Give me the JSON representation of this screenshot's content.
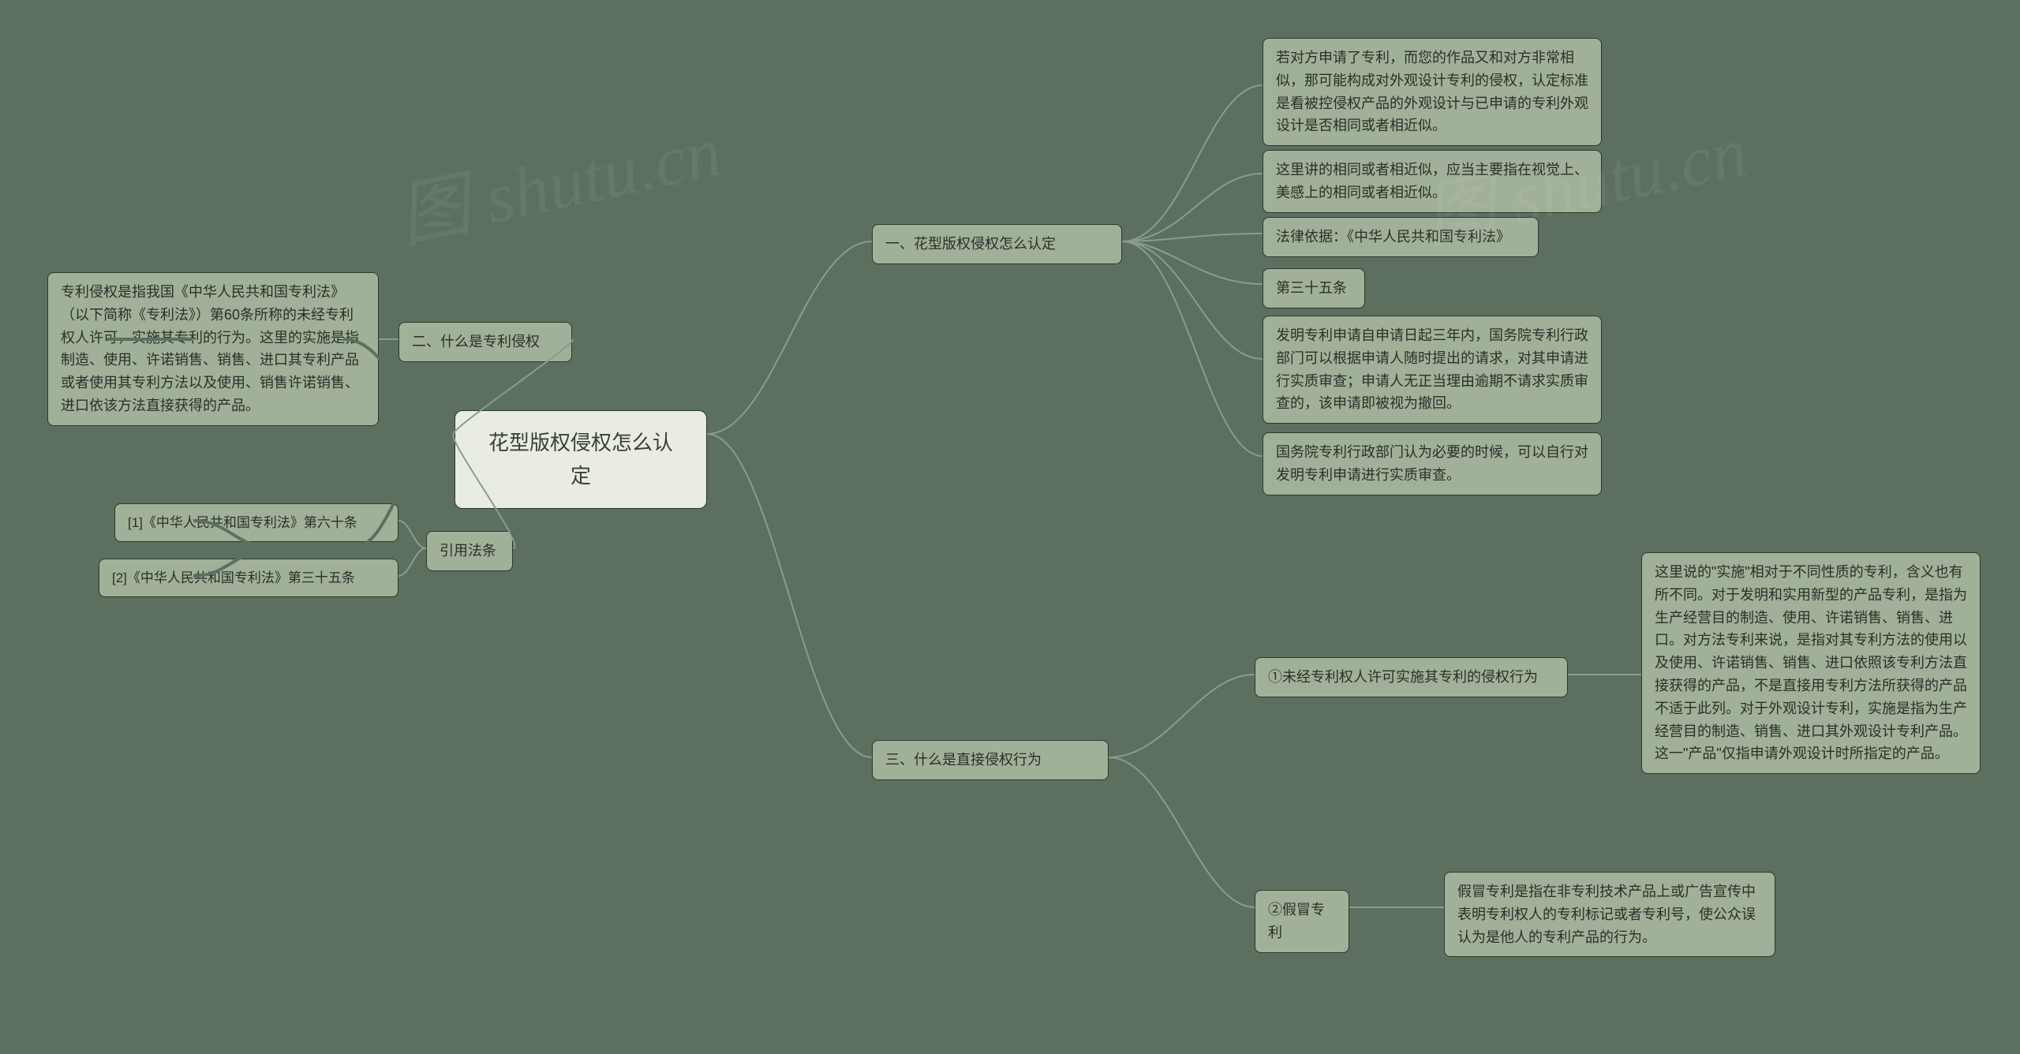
{
  "colors": {
    "bg": "#5d7060",
    "node_bg": "#a1b098",
    "node_border": "#2b3a2b",
    "root_bg": "#e9ece0",
    "connector": "#8a9d8d"
  },
  "root": {
    "label": "花型版权侵权怎么认定"
  },
  "branches": {
    "b1": {
      "label": "一、花型版权侵权怎么认定",
      "children": {
        "c1": "若对方申请了专利，而您的作品又和对方非常相似，那可能构成对外观设计专利的侵权，认定标准是看被控侵权产品的外观设计与已申请的专利外观设计是否相同或者相近似。",
        "c2": "这里讲的相同或者相近似，应当主要指在视觉上、美感上的相同或者相近似。",
        "c3": "法律依据：《中华人民共和国专利法》",
        "c4": "第三十五条",
        "c5": "发明专利申请自申请日起三年内，国务院专利行政部门可以根据申请人随时提出的请求，对其申请进行实质审查；申请人无正当理由逾期不请求实质审查的，该申请即被视为撤回。",
        "c6": "国务院专利行政部门认为必要的时候，可以自行对发明专利申请进行实质审查。"
      }
    },
    "b2": {
      "label": "二、什么是专利侵权",
      "leaf": "专利侵权是指我国《中华人民共和国专利法》（以下简称《专利法》）第60条所称的未经专利权人许可，实施其专利的行为。这里的实施是指制造、使用、许诺销售、销售、进口其专利产品或者使用其专利方法以及使用、销售许诺销售、进口依该方法直接获得的产品。"
    },
    "b3": {
      "label": "三、什么是直接侵权行为",
      "children": {
        "c1": {
          "label": "①未经专利权人许可实施其专利的侵权行为",
          "leaf": "这里说的\"实施\"相对于不同性质的专利，含义也有所不同。对于发明和实用新型的产品专利，是指为生产经营目的制造、使用、许诺销售、销售、进口。对方法专利来说，是指对其专利方法的使用以及使用、许诺销售、销售、进口依照该专利方法直接获得的产品，不是直接用专利方法所获得的产品不适于此列。对于外观设计专利，实施是指为生产经营目的制造、销售、进口其外观设计专利产品。这一\"产品\"仅指申请外观设计时所指定的产品。"
        },
        "c2": {
          "label": "②假冒专利",
          "leaf": "假冒专利是指在非专利技术产品上或广告宣传中表明专利权人的专利标记或者专利号，使公众误认为是他人的专利产品的行为。"
        }
      }
    },
    "b4": {
      "label": "引用法条",
      "children": {
        "c1": "[1]《中华人民共和国专利法》第六十条",
        "c2": "[2]《中华人民共和国专利法》第三十五条"
      }
    }
  },
  "watermarks": [
    "图 shutu.cn",
    "图 shutu.cn"
  ]
}
